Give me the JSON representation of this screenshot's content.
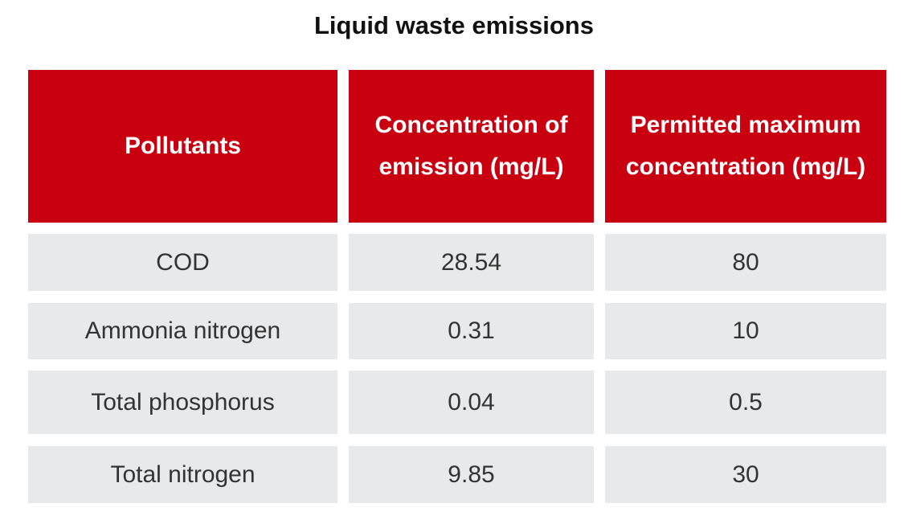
{
  "title": "Liquid waste emissions",
  "table": {
    "header": [
      "Pollutants",
      "Concentration of emission (mg/L)",
      "Permitted maximum concentration (mg/L)"
    ],
    "rows": [
      [
        "COD",
        "28.54",
        "80"
      ],
      [
        "Ammonia nitrogen",
        "0.31",
        "10"
      ],
      [
        "Total phosphorus",
        "0.04",
        "0.5"
      ],
      [
        "Total nitrogen",
        "9.85",
        "30"
      ]
    ]
  }
}
